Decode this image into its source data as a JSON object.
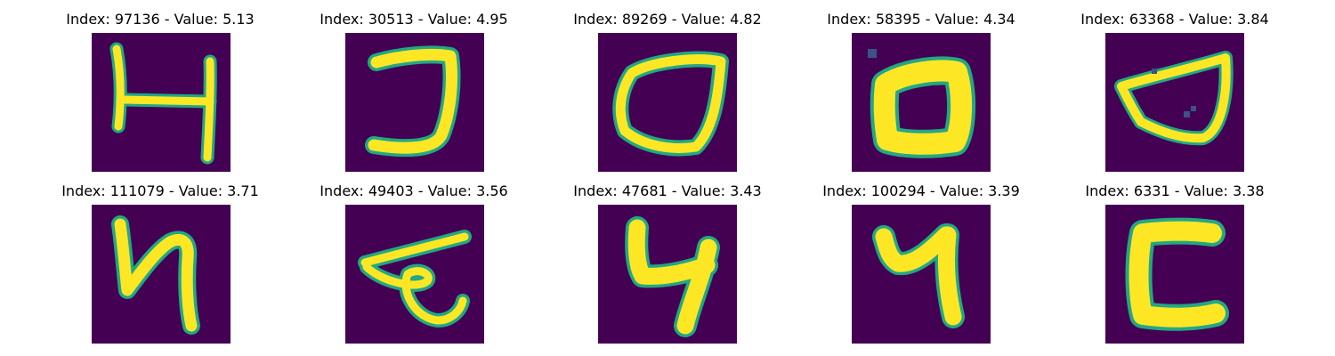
{
  "colormap": {
    "background": "#440154",
    "edge": "#22a884",
    "core": "#fde725",
    "speck": "#3b528b"
  },
  "panels": [
    {
      "title": "Index: 97136 - Value: 5.13",
      "glyph": "H-like character"
    },
    {
      "title": "Index: 30513 - Value: 4.95",
      "glyph": "J-like character"
    },
    {
      "title": "Index: 89269 - Value: 4.82",
      "glyph": "O-like loop"
    },
    {
      "title": "Index: 58395 - Value: 4.34",
      "glyph": "thick square loop"
    },
    {
      "title": "Index: 63368 - Value: 3.84",
      "glyph": "open bowl loop"
    },
    {
      "title": "Index: 111079 - Value: 3.71",
      "glyph": "N-like character"
    },
    {
      "title": "Index: 49403 - Value: 3.56",
      "glyph": "looped character"
    },
    {
      "title": "Index: 47681 - Value: 3.43",
      "glyph": "4-like character"
    },
    {
      "title": "Index: 100294 - Value: 3.39",
      "glyph": "7-like character"
    },
    {
      "title": "Index: 6331 - Value: 3.38",
      "glyph": "C-like character"
    }
  ]
}
